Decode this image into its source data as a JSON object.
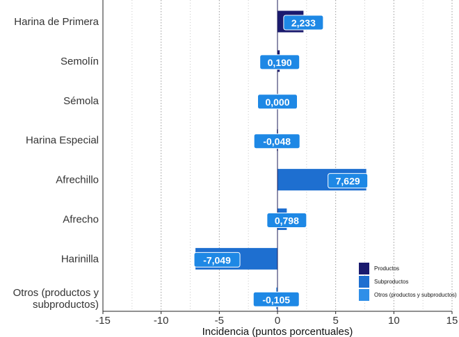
{
  "chart_data": {
    "type": "bar",
    "orientation": "horizontal",
    "categories": [
      "Harina de Primera",
      "Semolín",
      "Sémola",
      "Harina Especial",
      "Afrechillo",
      "Afrecho",
      "Harinilla",
      "Otros (productos y\nsubproductos)"
    ],
    "values": [
      2.233,
      0.19,
      0.0,
      -0.048,
      7.629,
      0.798,
      -7.049,
      -0.105
    ],
    "value_labels": [
      "2,233",
      "0,190",
      "0,000",
      "-0,048",
      "7,629",
      "0,798",
      "-7,049",
      "-0,105"
    ],
    "groups": [
      "Productos",
      "Productos",
      "Productos",
      "Productos",
      "Subproductos",
      "Subproductos",
      "Subproductos",
      "Otros (productos y subproductos)"
    ],
    "xlabel": "Incidencia (puntos porcentuales)",
    "ylabel": "",
    "xlim": [
      -15,
      15
    ],
    "xticks": [
      -15,
      -10,
      -5,
      0,
      5,
      10,
      15
    ],
    "grid": "vertical dotted",
    "legend": {
      "placement": "bottom-right",
      "entries": [
        {
          "name": "Productos",
          "color": "#1a1a6e"
        },
        {
          "name": "Subproductos",
          "color": "#1e6fd0"
        },
        {
          "name": "Otros (productos y subproductos)",
          "color": "#2f8fe8"
        }
      ]
    },
    "label_color": "#1e88e5"
  }
}
